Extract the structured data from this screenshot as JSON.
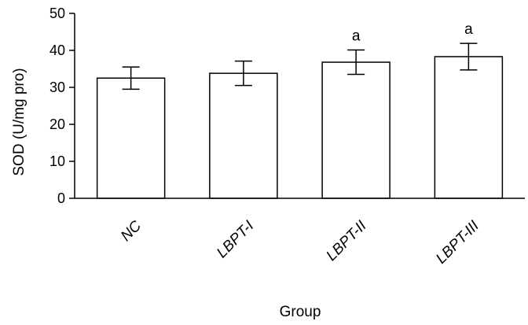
{
  "chart_data": {
    "type": "bar",
    "title": "",
    "xlabel": "Group",
    "ylabel": "SOD (U/mg pro)",
    "categories": [
      "NC",
      "LBPT-I",
      "LBPT-II",
      "LBPT-III"
    ],
    "values": [
      32.5,
      33.8,
      36.8,
      38.3
    ],
    "errors": [
      3.0,
      3.3,
      3.3,
      3.6
    ],
    "annotations": [
      "",
      "",
      "a",
      "a"
    ],
    "ylim": [
      0,
      50
    ],
    "yticks": [
      0,
      10,
      20,
      30,
      40,
      50
    ],
    "grid": false,
    "legend": "none",
    "colors": {
      "bar_fill": "#ffffff",
      "bar_stroke": "#000000",
      "axis": "#000000"
    }
  }
}
